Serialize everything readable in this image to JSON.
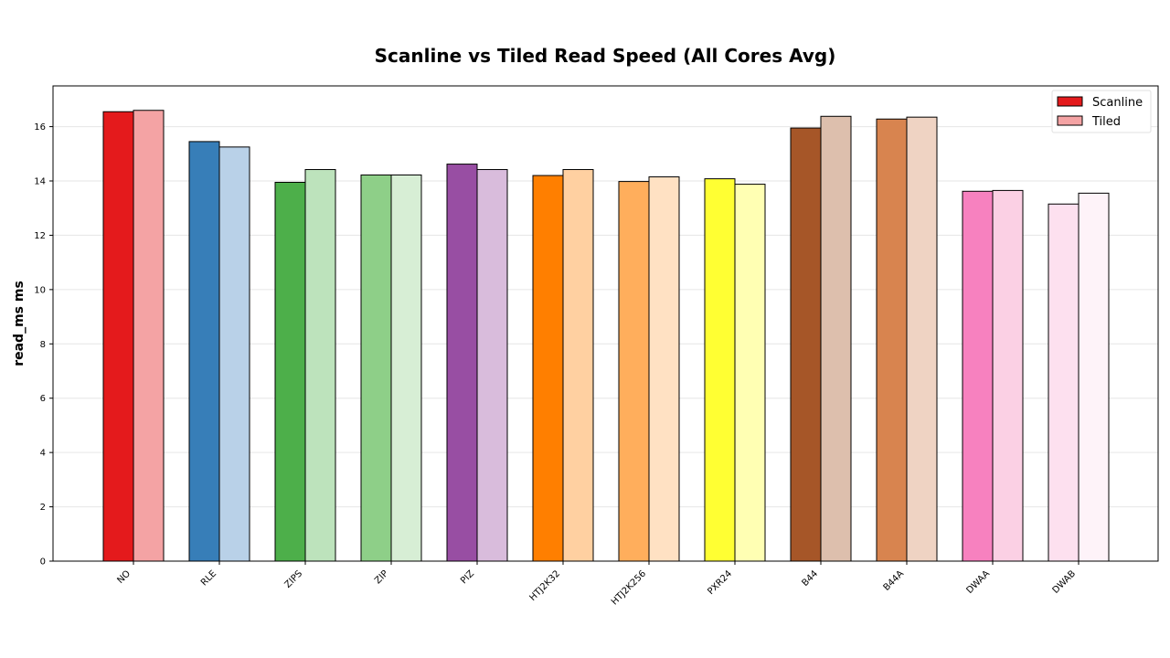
{
  "chart_data": {
    "type": "bar",
    "title": "Scanline vs Tiled Read Speed (All Cores Avg)",
    "xlabel": "",
    "ylabel": "read_ms ms",
    "ylim": [
      0,
      17.5
    ],
    "yticks": [
      0,
      2,
      4,
      6,
      8,
      10,
      12,
      14,
      16
    ],
    "grid": true,
    "legend_position": "top-right",
    "categories": [
      "NO",
      "RLE",
      "ZIPS",
      "ZIP",
      "PIZ",
      "HTJ2K32",
      "HTJ2K256",
      "PXR24",
      "B44",
      "B44A",
      "DWAA",
      "DWAB"
    ],
    "series": [
      {
        "name": "Scanline",
        "legend_color": "#e41a1c",
        "values": [
          16.55,
          15.45,
          13.95,
          14.22,
          14.62,
          14.2,
          13.98,
          14.08,
          15.95,
          16.28,
          13.62,
          13.15
        ],
        "colors": [
          "#e41a1c",
          "#377eb8",
          "#4daf4a",
          "#8ecf88",
          "#984ea3",
          "#ff7f00",
          "#ffae5c",
          "#ffff33",
          "#a65628",
          "#d8844f",
          "#f781bf",
          "#fde0ef"
        ]
      },
      {
        "name": "Tiled",
        "legend_color": "#f4a3a4",
        "values": [
          16.6,
          15.25,
          14.42,
          14.22,
          14.42,
          14.42,
          14.15,
          13.88,
          16.38,
          16.35,
          13.65,
          13.55
        ],
        "colors": [
          "#f4a3a4",
          "#b9d1e8",
          "#bde3bc",
          "#d7eed5",
          "#d9bcdc",
          "#ffd0a1",
          "#ffe1c3",
          "#ffffb3",
          "#ddbfad",
          "#efd3c3",
          "#fbd0e4",
          "#fef3f9"
        ]
      }
    ]
  }
}
